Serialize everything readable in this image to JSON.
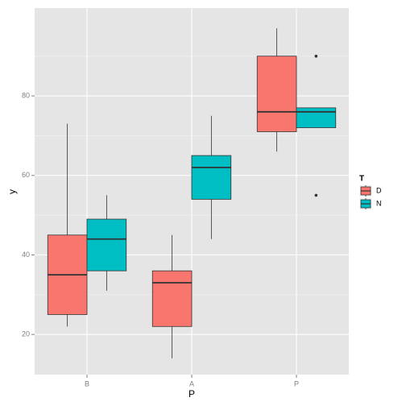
{
  "chart_data": {
    "type": "boxplot",
    "x_label": "P",
    "y_label": "y",
    "categories": [
      "B",
      "A",
      "P"
    ],
    "ylim": [
      9.9,
      102.1
    ],
    "yticks": [
      20,
      40,
      60,
      80
    ],
    "y_minor_ticks": [
      30,
      50,
      70,
      90
    ],
    "grid": true,
    "legend_title": "T",
    "legend_position": "right",
    "series": [
      {
        "name": "D",
        "color": "#F8766D",
        "values": [
          {
            "min": 22,
            "q1": 25,
            "median": 35,
            "q3": 45,
            "max": 73
          },
          {
            "min": 14,
            "q1": 22,
            "median": 33,
            "q3": 36,
            "max": 45
          },
          {
            "min": 66,
            "q1": 71,
            "median": 76,
            "q3": 90,
            "max": 97
          }
        ]
      },
      {
        "name": "N",
        "color": "#00BFC4",
        "values": [
          {
            "min": 31,
            "q1": 36,
            "median": 44,
            "q3": 49,
            "max": 55
          },
          {
            "min": 44,
            "q1": 54,
            "median": 62,
            "q3": 65,
            "max": 75
          },
          {
            "min": 72,
            "q1": 72,
            "median": 76,
            "q3": 77,
            "max": 77,
            "outliers": [
              90,
              55
            ]
          }
        ]
      }
    ]
  }
}
